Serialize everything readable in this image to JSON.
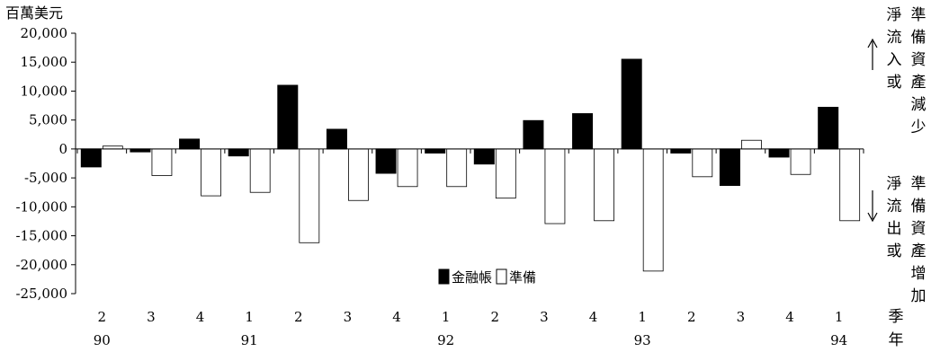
{
  "chart_data": {
    "type": "bar",
    "unit_label": "百萬美元",
    "y_ticks": [
      "20,000",
      "15,000",
      "10,000",
      "5,000",
      "0",
      "-5,000",
      "-10,000",
      "-15,000",
      "-20,000",
      "-25,000"
    ],
    "ylim": [
      -25000,
      20000
    ],
    "grid": false,
    "quarters": [
      "2",
      "3",
      "4",
      "1",
      "2",
      "3",
      "4",
      "1",
      "2",
      "3",
      "4",
      "1",
      "2",
      "3",
      "4",
      "1"
    ],
    "years": [
      {
        "label": "90",
        "index": 0
      },
      {
        "label": "91",
        "index": 3
      },
      {
        "label": "92",
        "index": 7
      },
      {
        "label": "93",
        "index": 11
      },
      {
        "label": "94",
        "index": 15
      }
    ],
    "series": [
      {
        "name": "金融帳",
        "color": "#000000",
        "values": [
          -3100,
          -500,
          1700,
          -1200,
          11000,
          3400,
          -4200,
          -700,
          -2600,
          4900,
          6100,
          15500,
          -700,
          -6300,
          -1400,
          7200
        ]
      },
      {
        "name": "準備",
        "color": "#ffffff",
        "values": [
          500,
          -4600,
          -8100,
          -7500,
          -16200,
          -8900,
          -6500,
          -6500,
          -8500,
          -12900,
          -12400,
          -21100,
          -4800,
          1500,
          -4400,
          -12400
        ]
      }
    ],
    "legend_position": "bottom-center",
    "right_annotation_top": {
      "col1": "淨流入或",
      "col2": "準備資產減少"
    },
    "right_annotation_bottom": {
      "col1": "淨流出或",
      "col2": "準備資產增加"
    },
    "x_axis_label": {
      "top": "季",
      "bottom": "年"
    }
  }
}
